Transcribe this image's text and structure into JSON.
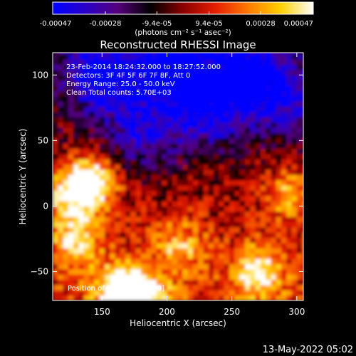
{
  "colorbar": {
    "tick_labels": [
      "-0.00047",
      "-0.00028",
      "-9.4e-05",
      "9.4e-05",
      "0.00028",
      "0.00047"
    ],
    "tick_values": [
      -0.00047,
      -0.00028,
      -9.4e-05,
      9.4e-05,
      0.00028,
      0.00047
    ],
    "range": [
      -0.00047,
      0.00047
    ],
    "units_label": "(photons cm⁻² s⁻¹ asec⁻²)",
    "colors": [
      "#0000ff",
      "#2a00c8",
      "#55007a",
      "#000000",
      "#8a0000",
      "#e61e00",
      "#ff7a00",
      "#ffd000",
      "#ffffff"
    ]
  },
  "chart_data": {
    "type": "heatmap",
    "title": "Reconstructed RHESSI Image",
    "xlabel": "Heliocentric X (arcsec)",
    "ylabel": "Heliocentric Y (arcsec)",
    "xlim": [
      112,
      305
    ],
    "ylim": [
      -72,
      117
    ],
    "x_ticks": [
      150,
      200,
      250,
      300
    ],
    "y_ticks": [
      -50,
      0,
      50,
      100
    ],
    "x_tick_labels": [
      "150",
      "200",
      "250",
      "300"
    ],
    "y_tick_labels": [
      "−50",
      "0",
      "50",
      "100"
    ],
    "value_range": [
      -0.00047,
      0.00047
    ],
    "annotations": [
      "23-Feb-2014 18:24:32.000 to 18:27:52.000",
      "Detectors: 3F 4F 5F 6F 7F 8F, Att 0",
      "Energy Range: 25.0 - 50.0 keV",
      "Clean    Total counts: 5.70E+03"
    ],
    "peak_label": "Position of Peak = [144,20]",
    "bright_regions": [
      {
        "x": 144,
        "y": 20,
        "value": 0.00047
      },
      {
        "x": 125,
        "y": 10,
        "value": 0.0004
      },
      {
        "x": 165,
        "y": -65,
        "value": 0.00045
      },
      {
        "x": 180,
        "y": -70,
        "value": 0.00042
      },
      {
        "x": 270,
        "y": -50,
        "value": 0.00038
      },
      {
        "x": 295,
        "y": 10,
        "value": 0.0003
      },
      {
        "x": 130,
        "y": -25,
        "value": 0.00035
      },
      {
        "x": 210,
        "y": -30,
        "value": 0.00028
      }
    ],
    "dim_regions": [
      {
        "x": 205,
        "y": 105,
        "value": -0.00047
      },
      {
        "x": 150,
        "y": 100,
        "value": -0.0004
      },
      {
        "x": 230,
        "y": 70,
        "value": -0.00035
      },
      {
        "x": 260,
        "y": 100,
        "value": -0.0004
      },
      {
        "x": 180,
        "y": 55,
        "value": -0.0003
      },
      {
        "x": 290,
        "y": 80,
        "value": -0.00028
      }
    ]
  },
  "footer": {
    "date": "13-May-2022 05:02"
  }
}
